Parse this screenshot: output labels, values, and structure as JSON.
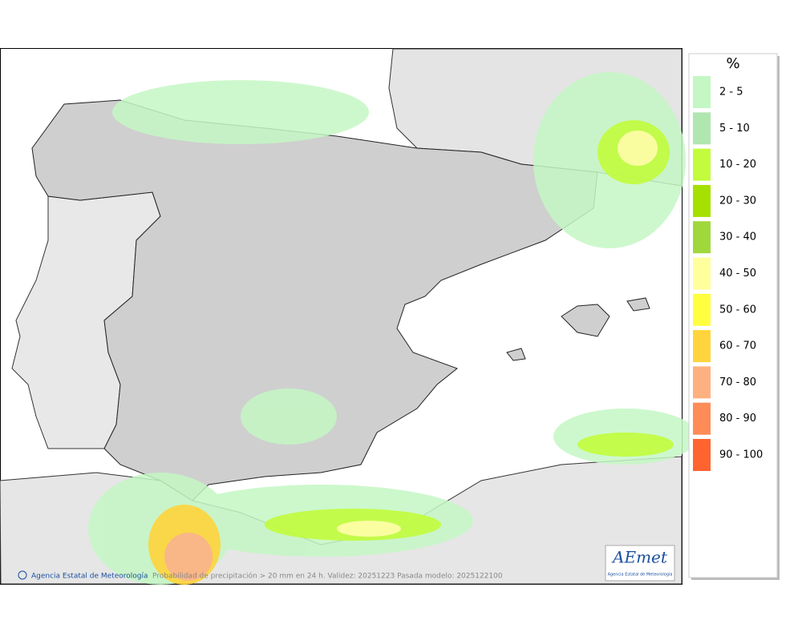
{
  "legend": {
    "title": "%",
    "items": [
      {
        "label": "2 - 5",
        "color": "#c4f7c4"
      },
      {
        "label": "5 - 10",
        "color": "#b0e6b0"
      },
      {
        "label": "10 - 20",
        "color": "#c2fc3c"
      },
      {
        "label": "20 - 30",
        "color": "#a6e000"
      },
      {
        "label": "30 - 40",
        "color": "#a0d83c"
      },
      {
        "label": "40 - 50",
        "color": "#ffff9c"
      },
      {
        "label": "50 - 60",
        "color": "#ffff40"
      },
      {
        "label": "60 - 70",
        "color": "#ffd43c"
      },
      {
        "label": "70 - 80",
        "color": "#ffb080"
      },
      {
        "label": "80 - 90",
        "color": "#ff8c58"
      },
      {
        "label": "90 - 100",
        "color": "#ff6430"
      }
    ]
  },
  "footer": {
    "agency": "Agencia Estatal de Meteorología",
    "caption": "Probabilidad de precipitación > 20 mm en 24 h. Validez: 20251223 Pasada modelo: 2025122100"
  },
  "logo": {
    "name": "AEmet",
    "subtitle": "Agencia Estatal de Meteorología"
  }
}
